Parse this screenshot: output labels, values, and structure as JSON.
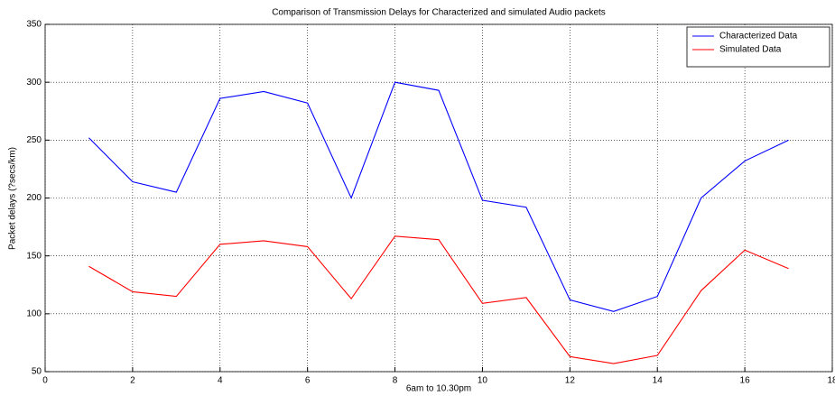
{
  "chart_data": {
    "type": "line",
    "title": "Comparison of Transmission Delays for Characterized and simulated Audio packets",
    "x_label": "6am to 10.30pm",
    "y_label": "Packet delays (?secs/km)",
    "x": [
      1,
      2,
      3,
      4,
      5,
      6,
      7,
      8,
      9,
      10,
      11,
      12,
      13,
      14,
      15,
      16,
      17
    ],
    "series": [
      {
        "name": "Characterized Data",
        "color": "#0000ff",
        "values": [
          252,
          214,
          205,
          286,
          292,
          282,
          200,
          300,
          293,
          198,
          192,
          112,
          102,
          115,
          200,
          232,
          250
        ]
      },
      {
        "name": "Simulated Data",
        "color": "#ff0000",
        "values": [
          141,
          119,
          115,
          160,
          163,
          158,
          113,
          167,
          164,
          109,
          114,
          63,
          57,
          64,
          120,
          155,
          139
        ]
      }
    ],
    "xlim": [
      0,
      18
    ],
    "xticks": [
      0,
      2,
      4,
      6,
      8,
      10,
      12,
      14,
      16,
      18
    ],
    "ylim": [
      50,
      350
    ],
    "yticks": [
      50,
      100,
      150,
      200,
      250,
      300,
      350
    ],
    "grid": true,
    "legend": "upper-right"
  }
}
